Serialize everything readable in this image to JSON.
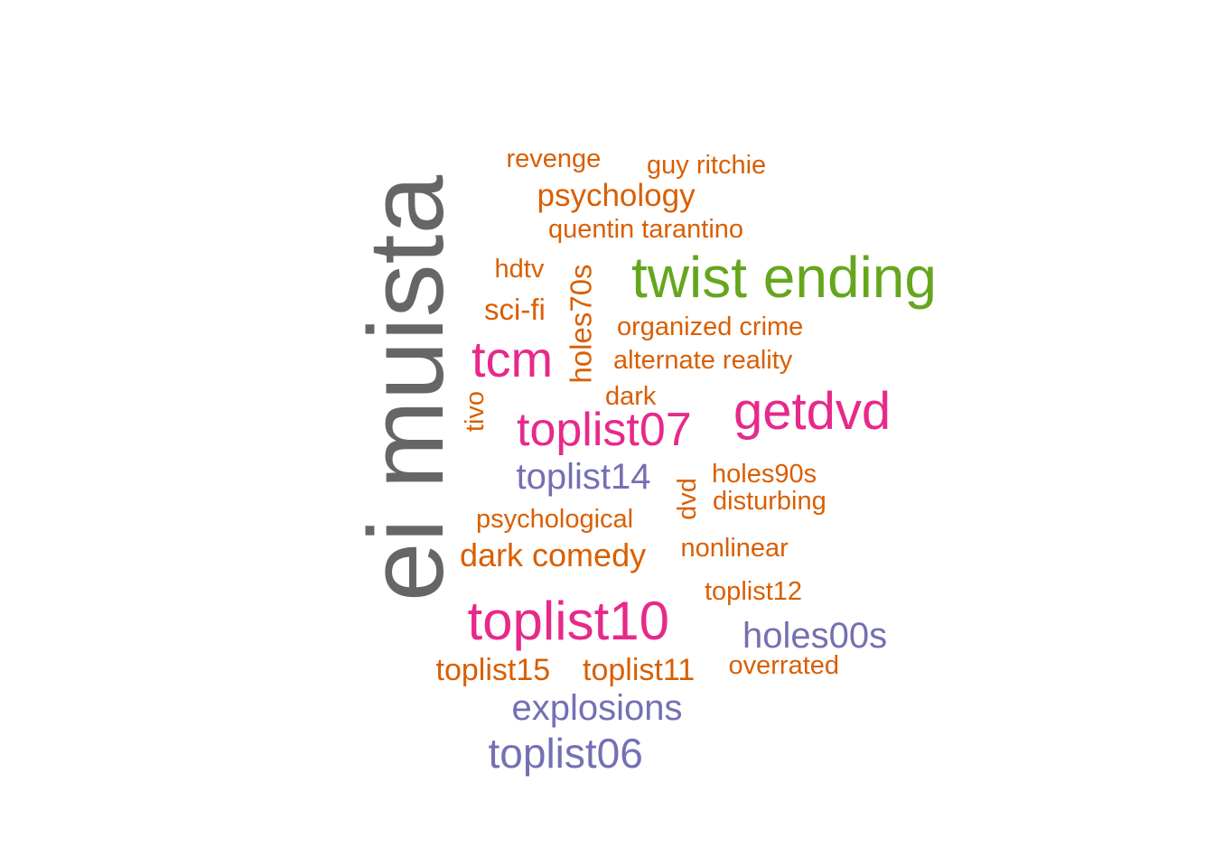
{
  "palette": {
    "gray": "#666666",
    "green": "#66a61e",
    "magenta": "#e7298a",
    "purple": "#7570b3",
    "orange": "#d95f02"
  },
  "words": [
    {
      "text": "ei muista",
      "color": "gray",
      "vertical": true
    },
    {
      "text": "twist ending",
      "color": "green",
      "vertical": false
    },
    {
      "text": "getdvd",
      "color": "magenta",
      "vertical": false
    },
    {
      "text": "toplist10",
      "color": "magenta",
      "vertical": false
    },
    {
      "text": "tcm",
      "color": "magenta",
      "vertical": false
    },
    {
      "text": "toplist07",
      "color": "magenta",
      "vertical": false
    },
    {
      "text": "toplist06",
      "color": "purple",
      "vertical": false
    },
    {
      "text": "explosions",
      "color": "purple",
      "vertical": false
    },
    {
      "text": "holes00s",
      "color": "purple",
      "vertical": false
    },
    {
      "text": "toplist14",
      "color": "purple",
      "vertical": false
    },
    {
      "text": "dark comedy",
      "color": "orange",
      "vertical": false
    },
    {
      "text": "psychology",
      "color": "orange",
      "vertical": false
    },
    {
      "text": "toplist15",
      "color": "orange",
      "vertical": false
    },
    {
      "text": "toplist11",
      "color": "orange",
      "vertical": false
    },
    {
      "text": "sci-fi",
      "color": "orange",
      "vertical": false
    },
    {
      "text": "holes70s",
      "color": "orange",
      "vertical": true
    },
    {
      "text": "revenge",
      "color": "orange",
      "vertical": false
    },
    {
      "text": "guy ritchie",
      "color": "orange",
      "vertical": false
    },
    {
      "text": "quentin tarantino",
      "color": "orange",
      "vertical": false
    },
    {
      "text": "hdtv",
      "color": "orange",
      "vertical": false
    },
    {
      "text": "organized crime",
      "color": "orange",
      "vertical": false
    },
    {
      "text": "alternate reality",
      "color": "orange",
      "vertical": false
    },
    {
      "text": "dark",
      "color": "orange",
      "vertical": false
    },
    {
      "text": "tivo",
      "color": "orange",
      "vertical": true
    },
    {
      "text": "holes90s",
      "color": "orange",
      "vertical": false
    },
    {
      "text": "dvd",
      "color": "orange",
      "vertical": true
    },
    {
      "text": "disturbing",
      "color": "orange",
      "vertical": false
    },
    {
      "text": "psychological",
      "color": "orange",
      "vertical": false
    },
    {
      "text": "nonlinear",
      "color": "orange",
      "vertical": false
    },
    {
      "text": "toplist12",
      "color": "orange",
      "vertical": false
    },
    {
      "text": "overrated",
      "color": "orange",
      "vertical": false
    }
  ]
}
